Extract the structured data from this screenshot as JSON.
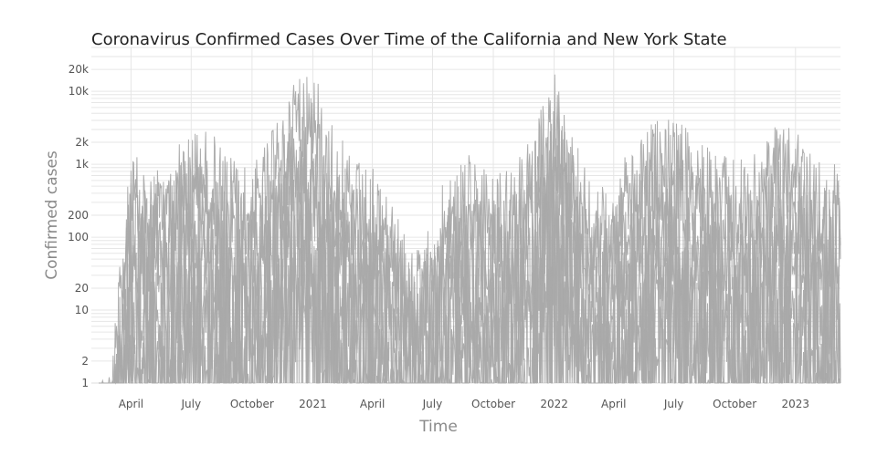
{
  "chart_data": {
    "type": "line",
    "title": "Coronavirus Confirmed Cases Over Time of the California and New York State",
    "xlabel": "Time",
    "ylabel": "Confirmed cases",
    "x_range": [
      "2020-02-01",
      "2023-03-10"
    ],
    "y_scale": "log",
    "ylim": [
      1,
      40000
    ],
    "y_ticks": [
      {
        "value": 1,
        "label": "1"
      },
      {
        "value": 2,
        "label": "2"
      },
      {
        "value": 10,
        "label": "10"
      },
      {
        "value": 20,
        "label": "20"
      },
      {
        "value": 100,
        "label": "100"
      },
      {
        "value": 200,
        "label": "200"
      },
      {
        "value": 1000,
        "label": "1k"
      },
      {
        "value": 2000,
        "label": "2k"
      },
      {
        "value": 10000,
        "label": "10k"
      },
      {
        "value": 20000,
        "label": "20k"
      }
    ],
    "x_ticks": [
      {
        "date": "2020-04-01",
        "label": "April"
      },
      {
        "date": "2020-07-01",
        "label": "July"
      },
      {
        "date": "2020-10-01",
        "label": "October"
      },
      {
        "date": "2021-01-01",
        "label": "2021"
      },
      {
        "date": "2021-04-01",
        "label": "April"
      },
      {
        "date": "2021-07-01",
        "label": "July"
      },
      {
        "date": "2021-10-01",
        "label": "October"
      },
      {
        "date": "2022-01-01",
        "label": "2022"
      },
      {
        "date": "2022-04-01",
        "label": "April"
      },
      {
        "date": "2022-07-01",
        "label": "July"
      },
      {
        "date": "2022-10-01",
        "label": "October"
      },
      {
        "date": "2023-01-01",
        "label": "2023"
      }
    ],
    "grid": true,
    "legend": "none",
    "line_color": "#a9a9a9",
    "series": [
      {
        "x": [
          "2020-03-01",
          "2020-04-01",
          "2020-05-01",
          "2020-06-01",
          "2020-07-01",
          "2020-08-01",
          "2020-09-01",
          "2020-10-01",
          "2020-11-01",
          "2020-12-01",
          "2021-01-01",
          "2021-02-01",
          "2021-03-01",
          "2021-04-01",
          "2021-05-01",
          "2021-06-01",
          "2021-07-01",
          "2021-08-01",
          "2021-09-01",
          "2021-10-01",
          "2021-11-01",
          "2021-12-01",
          "2022-01-01",
          "2022-02-01",
          "2022-03-01",
          "2022-04-01",
          "2022-05-01",
          "2022-06-01",
          "2022-07-01",
          "2022-08-01",
          "2022-09-01",
          "2022-10-01",
          "2022-11-01",
          "2022-12-01",
          "2023-01-01",
          "2023-02-01",
          "2023-03-01"
        ],
        "y": [
          2,
          1500,
          900,
          1800,
          4000,
          3000,
          1200,
          900,
          3000,
          20000,
          25000,
          4000,
          1200,
          900,
          300,
          60,
          200,
          1500,
          1300,
          800,
          900,
          3000,
          20000,
          3000,
          400,
          700,
          2000,
          4000,
          4500,
          2500,
          1500,
          1200,
          1800,
          3500,
          3000,
          1200,
          1000
        ]
      },
      {
        "x": [
          "2020-03-01",
          "2020-04-01",
          "2020-05-01",
          "2020-06-01",
          "2020-07-01",
          "2020-08-01",
          "2020-09-01",
          "2020-10-01",
          "2020-11-01",
          "2020-12-01",
          "2021-01-01",
          "2021-02-01",
          "2021-03-01",
          "2021-04-01",
          "2021-05-01",
          "2021-06-01",
          "2021-07-01",
          "2021-08-01",
          "2021-09-01",
          "2021-10-01",
          "2021-11-01",
          "2021-12-01",
          "2022-01-01",
          "2022-02-01",
          "2022-03-01",
          "2022-04-01",
          "2022-05-01",
          "2022-06-01",
          "2022-07-01",
          "2022-08-01",
          "2022-09-01",
          "2022-10-01",
          "2022-11-01",
          "2022-12-01",
          "2023-01-01",
          "2023-02-01",
          "2023-03-01"
        ],
        "y": [
          1,
          900,
          400,
          700,
          1500,
          1000,
          400,
          500,
          1500,
          4000,
          5000,
          1200,
          500,
          400,
          150,
          30,
          80,
          500,
          400,
          300,
          400,
          1200,
          8000,
          1200,
          200,
          300,
          800,
          1500,
          1800,
          900,
          500,
          400,
          700,
          1200,
          1100,
          500,
          400
        ]
      },
      {
        "x": [
          "2020-03-01",
          "2020-04-01",
          "2020-05-01",
          "2020-06-01",
          "2020-07-01",
          "2020-08-01",
          "2020-09-01",
          "2020-10-01",
          "2020-11-01",
          "2020-12-01",
          "2021-01-01",
          "2021-02-01",
          "2021-03-01",
          "2021-04-01",
          "2021-05-01",
          "2021-06-01",
          "2021-07-01",
          "2021-08-01",
          "2021-09-01",
          "2021-10-01",
          "2021-11-01",
          "2021-12-01",
          "2022-01-01",
          "2022-02-01",
          "2022-03-01",
          "2022-04-01",
          "2022-05-01",
          "2022-06-01",
          "2022-07-01",
          "2022-08-01",
          "2022-09-01",
          "2022-10-01",
          "2022-11-01",
          "2022-12-01",
          "2023-01-01",
          "2023-02-01",
          "2023-03-01"
        ],
        "y": [
          1,
          300,
          150,
          200,
          500,
          300,
          150,
          200,
          600,
          1500,
          2000,
          500,
          200,
          150,
          60,
          15,
          30,
          150,
          150,
          100,
          150,
          400,
          3000,
          400,
          80,
          100,
          300,
          500,
          600,
          300,
          200,
          150,
          250,
          400,
          400,
          200,
          150
        ]
      },
      {
        "x": [
          "2020-03-01",
          "2020-04-01",
          "2020-05-01",
          "2020-06-01",
          "2020-07-01",
          "2020-08-01",
          "2020-09-01",
          "2020-10-01",
          "2020-11-01",
          "2020-12-01",
          "2021-01-01",
          "2021-02-01",
          "2021-03-01",
          "2021-04-01",
          "2021-05-01",
          "2021-06-01",
          "2021-07-01",
          "2021-08-01",
          "2021-09-01",
          "2021-10-01",
          "2021-11-01",
          "2021-12-01",
          "2022-01-01",
          "2022-02-01",
          "2022-03-01",
          "2022-04-01",
          "2022-05-01",
          "2022-06-01",
          "2022-07-01",
          "2022-08-01",
          "2022-09-01",
          "2022-10-01",
          "2022-11-01",
          "2022-12-01",
          "2023-01-01",
          "2023-02-01",
          "2023-03-01"
        ],
        "y": [
          1,
          80,
          40,
          50,
          120,
          80,
          40,
          60,
          150,
          400,
          600,
          150,
          60,
          50,
          20,
          5,
          10,
          50,
          50,
          40,
          50,
          150,
          1000,
          150,
          30,
          40,
          100,
          150,
          200,
          100,
          60,
          50,
          80,
          150,
          150,
          60,
          50
        ]
      },
      {
        "x": [
          "2020-03-01",
          "2020-04-01",
          "2020-05-01",
          "2020-06-01",
          "2020-07-01",
          "2020-08-01",
          "2020-09-01",
          "2020-10-01",
          "2020-11-01",
          "2020-12-01",
          "2021-01-01",
          "2021-02-01",
          "2021-03-01",
          "2021-04-01",
          "2021-05-01",
          "2021-06-01",
          "2021-07-01",
          "2021-08-01",
          "2021-09-01",
          "2021-10-01",
          "2021-11-01",
          "2021-12-01",
          "2022-01-01",
          "2022-02-01",
          "2022-03-01",
          "2022-04-01",
          "2022-05-01",
          "2022-06-01",
          "2022-07-01",
          "2022-08-01",
          "2022-09-01",
          "2022-10-01",
          "2022-11-01",
          "2022-12-01",
          "2023-01-01",
          "2023-02-01",
          "2023-03-01"
        ],
        "y": [
          1,
          20,
          10,
          12,
          30,
          20,
          10,
          15,
          40,
          100,
          150,
          40,
          15,
          12,
          5,
          2,
          3,
          15,
          15,
          10,
          15,
          40,
          300,
          40,
          8,
          10,
          30,
          40,
          60,
          30,
          15,
          12,
          20,
          40,
          40,
          15,
          12
        ]
      },
      {
        "x": [
          "2020-03-01",
          "2020-04-01",
          "2020-05-01",
          "2020-06-01",
          "2020-07-01",
          "2020-08-01",
          "2020-09-01",
          "2020-10-01",
          "2020-11-01",
          "2020-12-01",
          "2021-01-01",
          "2021-02-01",
          "2021-03-01",
          "2021-04-01",
          "2021-05-01",
          "2021-06-01",
          "2021-07-01",
          "2021-08-01",
          "2021-09-01",
          "2021-10-01",
          "2021-11-01",
          "2021-12-01",
          "2022-01-01",
          "2022-02-01",
          "2022-03-01",
          "2022-04-01",
          "2022-05-01",
          "2022-06-01",
          "2022-07-01",
          "2022-08-01",
          "2022-09-01",
          "2022-10-01",
          "2022-11-01",
          "2022-12-01",
          "2023-01-01",
          "2023-02-01",
          "2023-03-01"
        ],
        "y": [
          1,
          5,
          3,
          4,
          8,
          6,
          3,
          4,
          10,
          30,
          40,
          10,
          4,
          3,
          2,
          1,
          1,
          4,
          4,
          3,
          4,
          10,
          80,
          10,
          2,
          3,
          8,
          10,
          15,
          8,
          4,
          3,
          5,
          10,
          10,
          4,
          3
        ]
      }
    ]
  }
}
